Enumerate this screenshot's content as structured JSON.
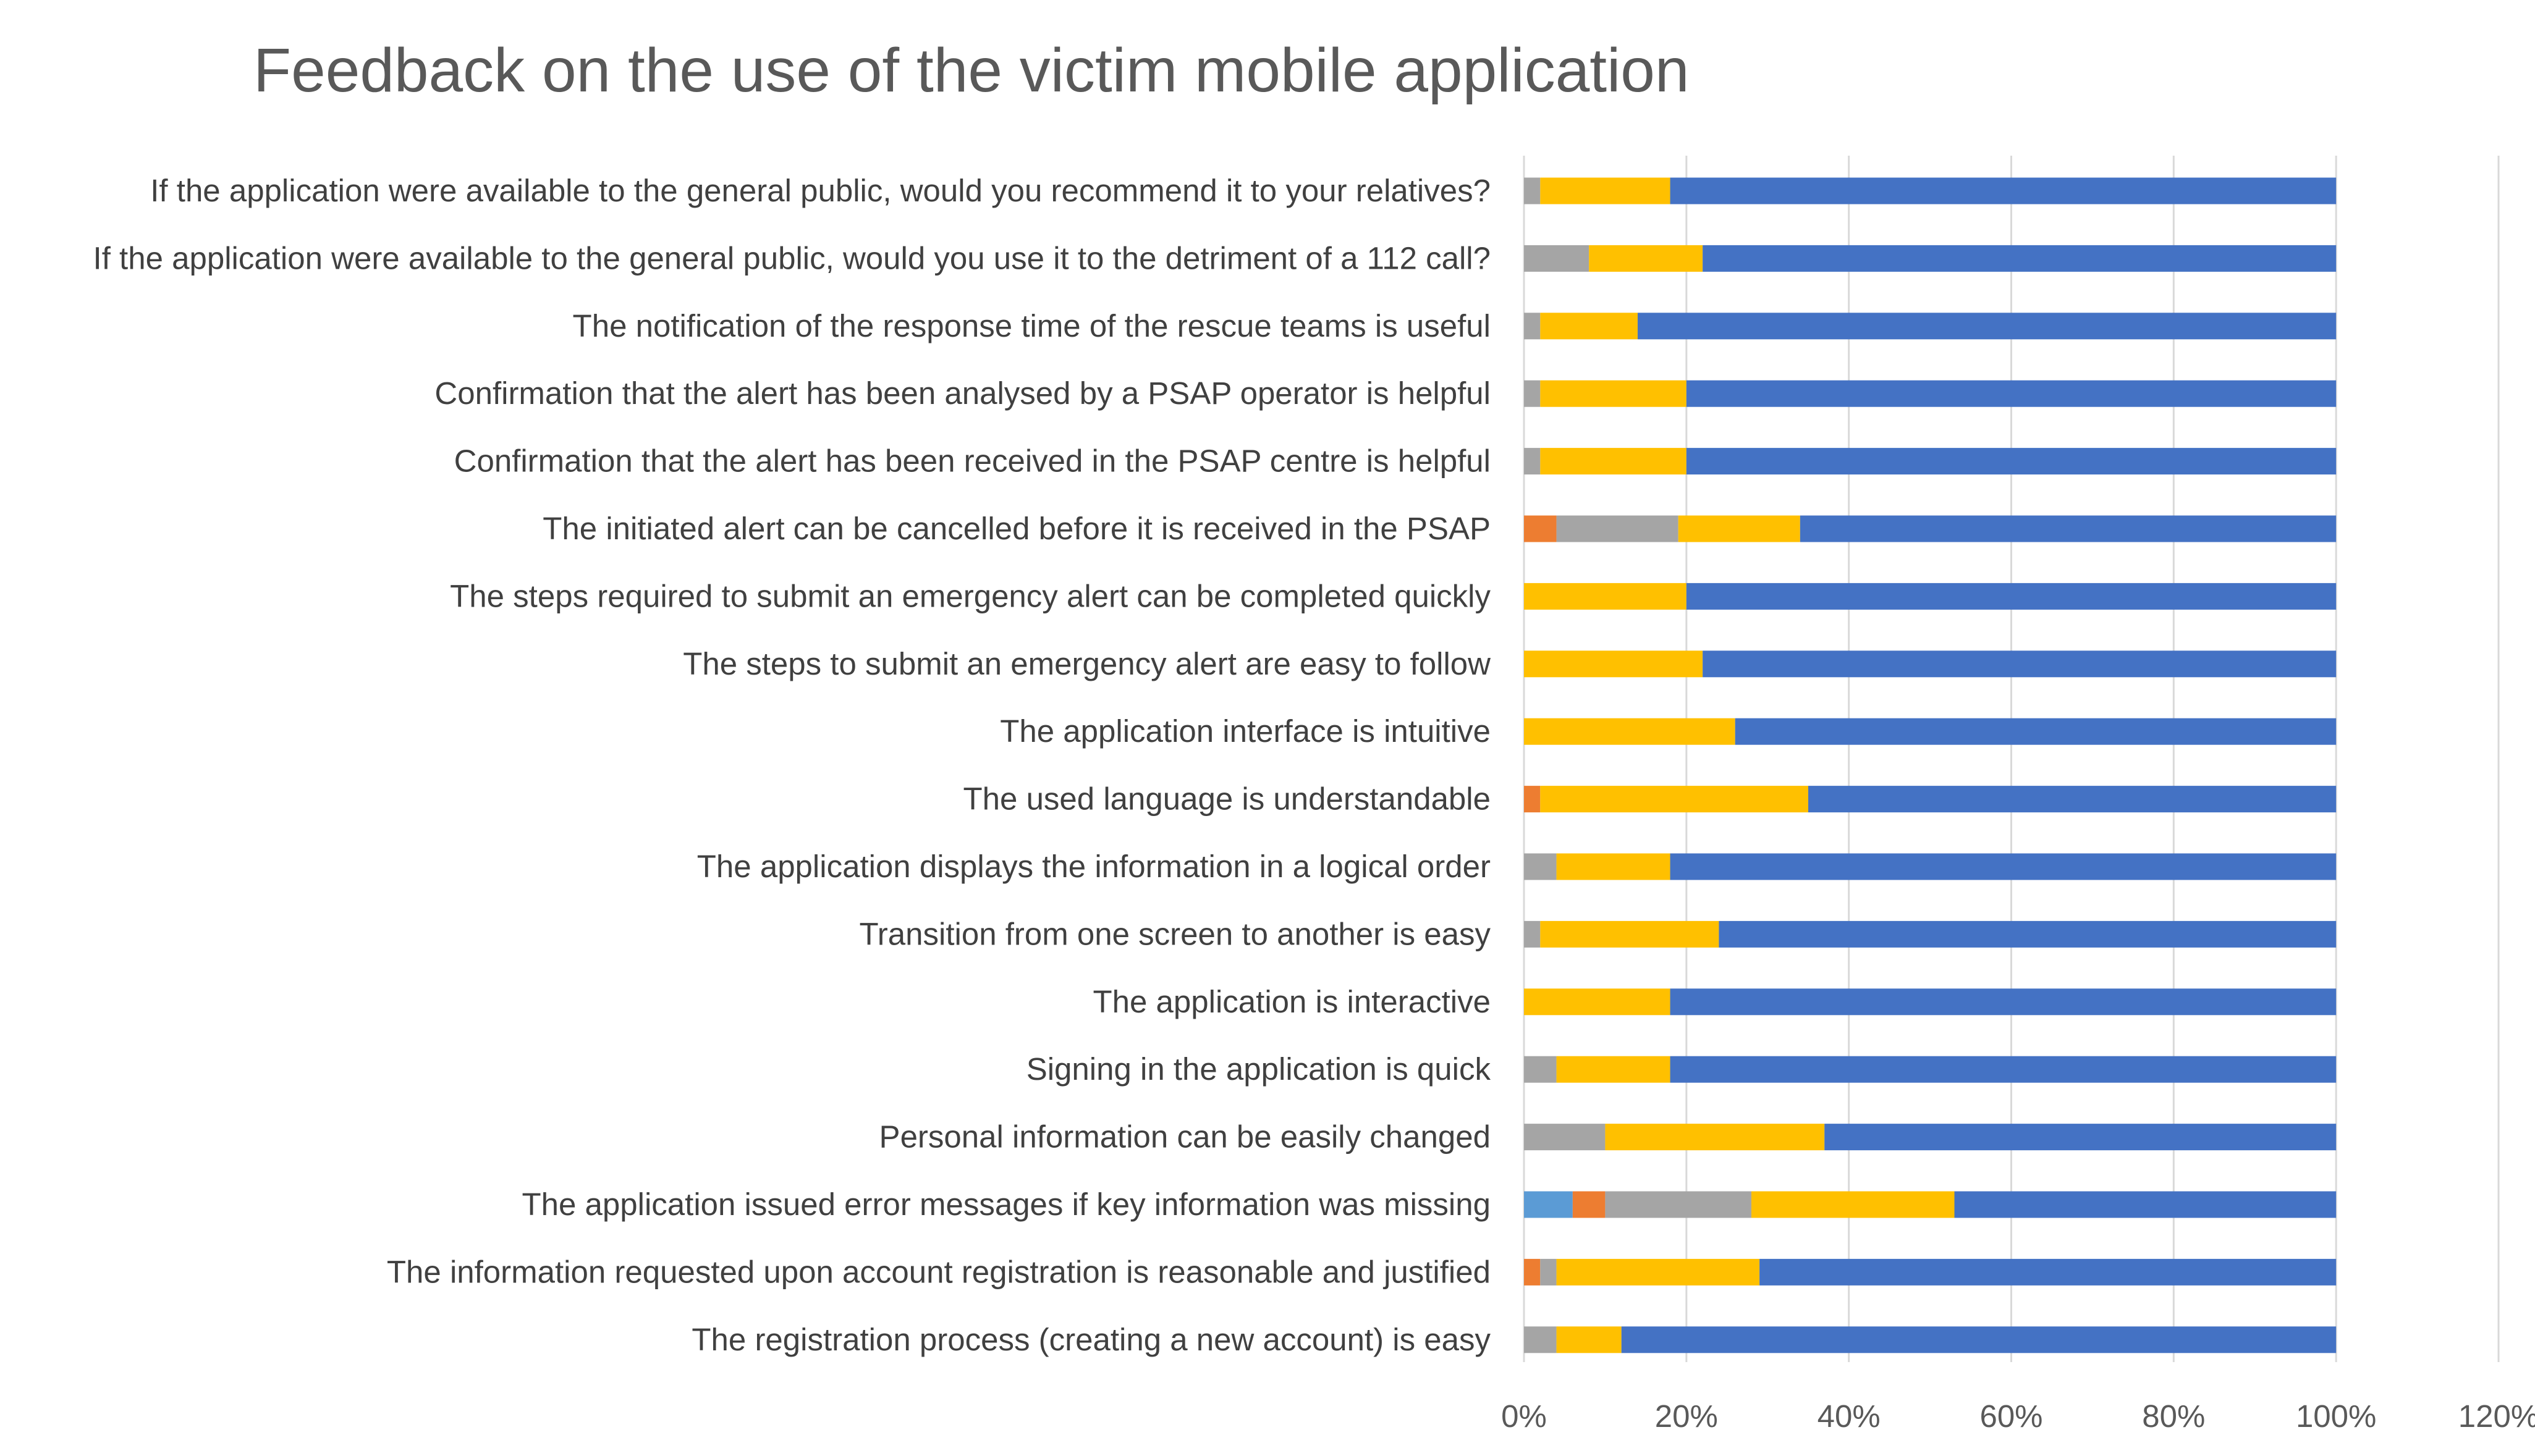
{
  "chart_data": {
    "type": "bar",
    "orientation": "horizontal",
    "stacked": true,
    "title": "Feedback on the use of the victim mobile application",
    "xlabel": "",
    "ylabel": "",
    "xlim": [
      0,
      120
    ],
    "x_ticks": [
      "0%",
      "20%",
      "40%",
      "60%",
      "80%",
      "100%",
      "120%"
    ],
    "grid": true,
    "legend": "none",
    "categories": [
      "If the application were available to the general public, would you recommend it to your relatives?",
      "If the application were available to the general public, would you use it to the detriment of  a 112 call?",
      "The notification of the response time of the rescue teams is useful",
      "Confirmation that the alert has been analysed by a PSAP operator is helpful",
      "Confirmation that the alert has been received in the PSAP centre is helpful",
      "The initiated alert can be cancelled before it is received in the PSAP",
      "The steps required to submit an emergency alert can be completed quickly",
      "The steps to submit an emergency alert are easy to follow",
      "The application interface is intuitive",
      "The used language is understandable",
      "The application displays the information in a logical order",
      "Transition from one screen to another is easy",
      "The application is interactive",
      "Signing in the application is quick",
      "Personal information can be easily changed",
      "The application issued error messages if key information was missing",
      "The information requested upon account registration is reasonable and justified",
      "The registration process (creating a new account) is easy"
    ],
    "series": [
      {
        "name": "light-blue",
        "color": "#5B9BD5",
        "values": [
          0,
          0,
          0,
          0,
          0,
          0,
          0,
          0,
          0,
          0,
          0,
          0,
          0,
          0,
          0,
          6,
          0,
          0
        ]
      },
      {
        "name": "orange",
        "color": "#ED7D31",
        "values": [
          0,
          0,
          0,
          0,
          0,
          4,
          0,
          0,
          0,
          2,
          0,
          0,
          0,
          0,
          0,
          4,
          2,
          0
        ]
      },
      {
        "name": "gray",
        "color": "#A5A5A5",
        "values": [
          2,
          8,
          2,
          2,
          2,
          15,
          0,
          0,
          0,
          0,
          4,
          2,
          0,
          4,
          10,
          18,
          2,
          4
        ]
      },
      {
        "name": "yellow",
        "color": "#FFC000",
        "values": [
          16,
          14,
          12,
          18,
          18,
          15,
          20,
          22,
          26,
          33,
          14,
          22,
          18,
          14,
          27,
          25,
          25,
          8
        ]
      },
      {
        "name": "blue",
        "color": "#4472C4",
        "values": [
          82,
          78,
          86,
          80,
          80,
          66,
          80,
          78,
          74,
          65,
          82,
          76,
          82,
          82,
          63,
          47,
          71,
          88
        ]
      }
    ]
  }
}
